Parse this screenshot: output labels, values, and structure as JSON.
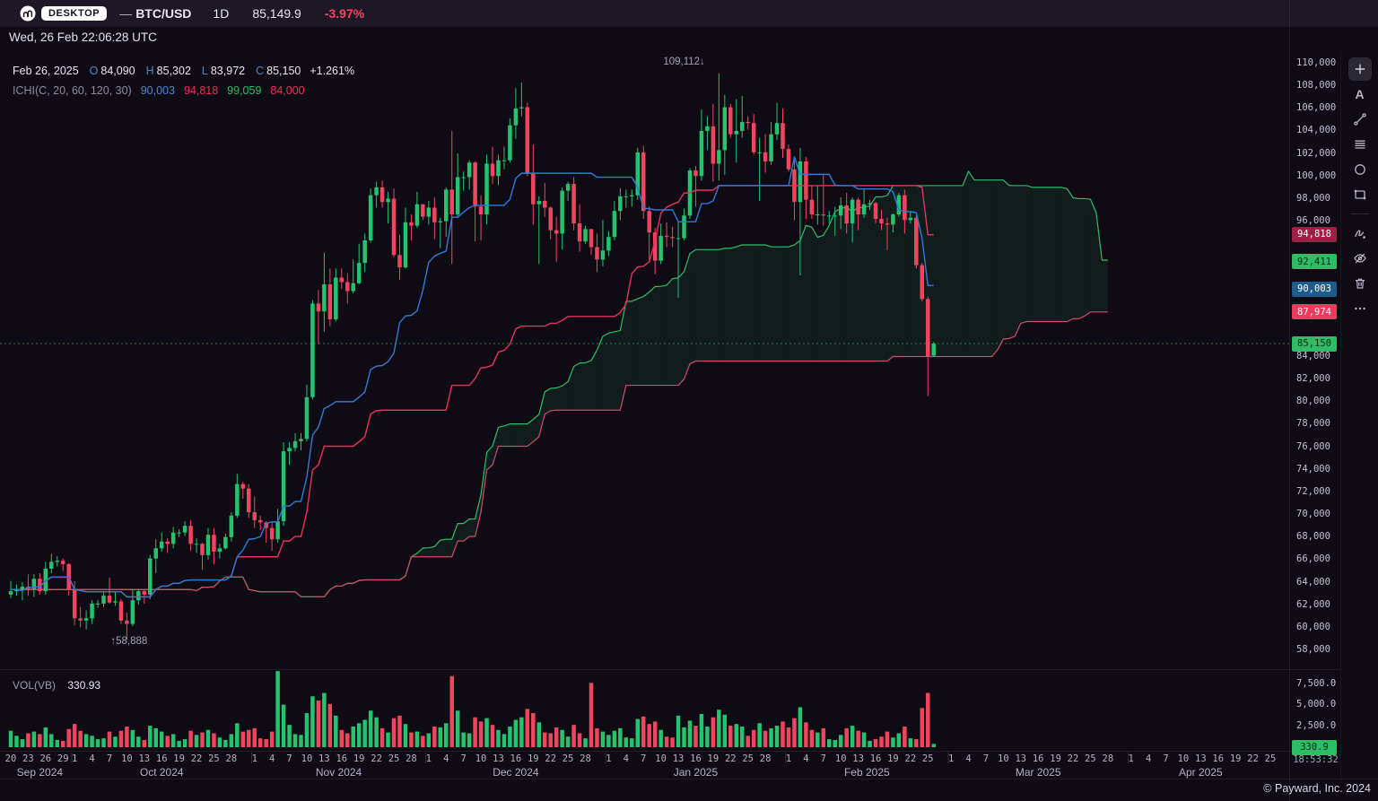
{
  "header": {
    "badge": "DESKTOP",
    "separator": "—",
    "pair": "BTC/USD",
    "timeframe": "1D",
    "price": "85,149.9",
    "change": "-3.97%",
    "datetime": "Wed, 26 Feb 22:06:28 UTC"
  },
  "legend": {
    "date": "Feb 26, 2025",
    "fields": [
      {
        "label": "O",
        "value": "84,090"
      },
      {
        "label": "H",
        "value": "85,302"
      },
      {
        "label": "L",
        "value": "83,972"
      },
      {
        "label": "C",
        "value": "85,150"
      }
    ],
    "change": "+1.261%",
    "indicator_label": "ICHI(C, 20, 60, 120, 30)",
    "indicator_values": [
      {
        "text": "90,003",
        "color": "#4a86d4"
      },
      {
        "text": "94,818",
        "color": "#e8315b"
      },
      {
        "text": "99,059",
        "color": "#2ebd64"
      },
      {
        "text": "84,000",
        "color": "#e8315b"
      }
    ]
  },
  "annotations": {
    "high": "109,112↓",
    "low": "↑58,888"
  },
  "volume_legend": {
    "label": "VOL(VB)",
    "value": "330.93"
  },
  "price_axis": {
    "visible_ticks": [
      "110,000",
      "108,000",
      "106,000",
      "104,000",
      "102,000",
      "100,000",
      "98,000",
      "96,000",
      "84,000",
      "82,000",
      "80,000",
      "78,000",
      "76,000",
      "74,000",
      "72,000",
      "70,000",
      "68,000",
      "66,000",
      "64,000",
      "62,000",
      "60,000",
      "58,000"
    ],
    "tags": [
      {
        "name": "kijun-price-tag",
        "text": "94,818",
        "price": 94818,
        "bg": "#9c2143",
        "fg": "#ffffff"
      },
      {
        "name": "senkou-a-price-tag",
        "text": "92,411",
        "price": 92411,
        "bg": "#2ebd64",
        "fg": "#0e2718"
      },
      {
        "name": "tenkan-price-tag",
        "text": "90,003",
        "price": 90003,
        "bg": "#1e5c8c",
        "fg": "#ffffff"
      },
      {
        "name": "senkou-b-price-tag",
        "text": "87,974",
        "price": 87974,
        "bg": "#ee3a5c",
        "fg": "#ffffff"
      },
      {
        "name": "last-price-tag",
        "text": "85,150",
        "price": 85150,
        "bg": "#2ebd64",
        "fg": "#0e2718"
      }
    ]
  },
  "volume_axis": {
    "ticks": [
      {
        "text": "7,500.0",
        "value": 7500
      },
      {
        "text": "5,000.0",
        "value": 5000
      },
      {
        "text": "2,500.0",
        "value": 2500
      }
    ],
    "tag": {
      "text": "330.9",
      "value": 331,
      "bg": "#2ebd64",
      "fg": "#0e2718"
    },
    "countdown": "18:53:32"
  },
  "time_axis": {
    "months": [
      {
        "label": "Sep 2024",
        "start_index": 0,
        "first_day": 20,
        "days": [
          20,
          23,
          26,
          29
        ]
      },
      {
        "label": "Oct 2024",
        "start_index": 11,
        "first_day": 1,
        "days": [
          1,
          4,
          7,
          10,
          13,
          16,
          19,
          22,
          25,
          28
        ]
      },
      {
        "label": "Nov 2024",
        "start_index": 42,
        "first_day": 1,
        "days": [
          1,
          4,
          7,
          10,
          13,
          16,
          19,
          22,
          25,
          28
        ]
      },
      {
        "label": "Dec 2024",
        "start_index": 72,
        "first_day": 1,
        "days": [
          1,
          4,
          7,
          10,
          13,
          16,
          19,
          22,
          25,
          28
        ]
      },
      {
        "label": "Jan 2025",
        "start_index": 103,
        "first_day": 1,
        "days": [
          1,
          4,
          7,
          10,
          13,
          16,
          19,
          22,
          25,
          28
        ]
      },
      {
        "label": "Feb 2025",
        "start_index": 134,
        "first_day": 1,
        "days": [
          1,
          4,
          7,
          10,
          13,
          16,
          19,
          22,
          25
        ]
      },
      {
        "label": "Mar 2025",
        "start_index": 162,
        "first_day": 1,
        "days": [
          1,
          4,
          7,
          10,
          13,
          16,
          19,
          22,
          25,
          28
        ]
      },
      {
        "label": "Apr 2025",
        "start_index": 193,
        "first_day": 1,
        "days": [
          1,
          4,
          7,
          10,
          13,
          16,
          19,
          22,
          25
        ]
      }
    ],
    "end_index": 217
  },
  "toolbar": {
    "items": [
      {
        "name": "add"
      },
      {
        "name": "text"
      },
      {
        "name": "trend-line"
      },
      {
        "name": "horizontal-lines"
      },
      {
        "name": "ellipse"
      },
      {
        "name": "rectangle"
      },
      {
        "divider": true
      },
      {
        "name": "freehand"
      },
      {
        "name": "hide-drawings"
      },
      {
        "name": "delete-drawings"
      },
      {
        "name": "more"
      }
    ]
  },
  "footer": {
    "copyright": "© Payward, Inc. 2024"
  },
  "chart_data": {
    "type": "candlestick",
    "title": "BTC/USD 1D candlesticks with ICHI(C, 20, 60, 120, 30) Ichimoku cloud and volume",
    "interval": "1D",
    "start_date": "2024-09-20",
    "last_candle_date": "2025-02-26",
    "price_unit": "USD, values in thousands",
    "ylim": [
      57000,
      111500
    ],
    "last_price": 85.15,
    "indicator": {
      "name": "ICHI",
      "source": "C",
      "params": [
        20,
        60,
        120,
        30
      ]
    },
    "colors": {
      "up": "#26c36f",
      "down": "#f1455f",
      "tenkan": "#2f7bd8",
      "kijun": "#e8315b",
      "senkou_a": "#2ebd68",
      "senkou_b": "#d14a6c",
      "cloud_up": "rgba(46,189,104,0.10)",
      "cloud_down": "rgba(233,62,96,0.09)",
      "price_line": "rgba(46,195,111,0.6)"
    },
    "annotations": [
      {
        "text": "109,112↓",
        "candle_index": 122,
        "type": "highest-high"
      },
      {
        "text": "↑58,888",
        "candle_index": 20,
        "type": "lowest-low"
      }
    ],
    "ohlc": [
      [
        62.9,
        64.1,
        62.6,
        63.2
      ],
      [
        63.2,
        63.8,
        62.8,
        63.3
      ],
      [
        63.3,
        64,
        62.4,
        63.6
      ],
      [
        63.6,
        64.7,
        62.8,
        63.4
      ],
      [
        63.4,
        64.7,
        62.7,
        64.3
      ],
      [
        64.3,
        64.8,
        62.9,
        63.2
      ],
      [
        63.2,
        65.8,
        62.9,
        65.2
      ],
      [
        65.2,
        66.5,
        64.8,
        65.8
      ],
      [
        65.8,
        66.3,
        65.4,
        65.9
      ],
      [
        65.9,
        66.1,
        65,
        65.6
      ],
      [
        65.6,
        65.7,
        62.8,
        63.3
      ],
      [
        63.3,
        64.1,
        60.2,
        60.8
      ],
      [
        60.8,
        61.8,
        60,
        60.6
      ],
      [
        60.6,
        61.5,
        59.8,
        60.8
      ],
      [
        60.8,
        62.4,
        60.3,
        62.1
      ],
      [
        62.1,
        62.4,
        61.7,
        62.1
      ],
      [
        62.1,
        63.2,
        61.8,
        62.8
      ],
      [
        62.8,
        64.4,
        62.1,
        62.2
      ],
      [
        62.2,
        63.2,
        61.9,
        62.3
      ],
      [
        62.3,
        62.5,
        60.3,
        60.6
      ],
      [
        60.6,
        61.3,
        58.9,
        60.3
      ],
      [
        60.3,
        63.4,
        60.1,
        62.4
      ],
      [
        62.4,
        63.4,
        62,
        63.2
      ],
      [
        63.2,
        63.3,
        62.1,
        62.9
      ],
      [
        62.9,
        66.4,
        62.5,
        66.1
      ],
      [
        66.1,
        67.8,
        64.8,
        67
      ],
      [
        67,
        68.4,
        66.7,
        67.6
      ],
      [
        67.6,
        67.9,
        66.6,
        67.4
      ],
      [
        67.4,
        68.9,
        67,
        68.4
      ],
      [
        68.4,
        68.7,
        68,
        68.4
      ],
      [
        68.4,
        69.4,
        68.1,
        69
      ],
      [
        69,
        69.5,
        66.8,
        67.4
      ],
      [
        67.4,
        67.9,
        66.6,
        67.4
      ],
      [
        67.4,
        67.5,
        65.1,
        66.4
      ],
      [
        66.4,
        68.8,
        66,
        68.2
      ],
      [
        68.2,
        68.8,
        65.6,
        66.7
      ],
      [
        66.7,
        67.4,
        66.1,
        67
      ],
      [
        67,
        68.3,
        66.9,
        68
      ],
      [
        68,
        70.2,
        67.6,
        69.9
      ],
      [
        69.9,
        73.6,
        69.7,
        72.7
      ],
      [
        72.7,
        72.9,
        71.4,
        72.3
      ],
      [
        72.3,
        72.7,
        69.7,
        70.2
      ],
      [
        70.2,
        71.6,
        68.8,
        69.5
      ],
      [
        69.5,
        69.9,
        68.6,
        69.3
      ],
      [
        69.3,
        69.4,
        67.5,
        68.8
      ],
      [
        68.8,
        69.4,
        66.8,
        67.8
      ],
      [
        67.8,
        70.5,
        67.5,
        69.4
      ],
      [
        69.4,
        76.4,
        69,
        75.6
      ],
      [
        75.6,
        76.4,
        74.4,
        75.9
      ],
      [
        75.9,
        77.2,
        75.6,
        76.5
      ],
      [
        76.5,
        77.2,
        75.7,
        76.7
      ],
      [
        76.7,
        81.5,
        76.5,
        80.4
      ],
      [
        80.4,
        89,
        80.2,
        88.7
      ],
      [
        88.7,
        89.9,
        85.1,
        88
      ],
      [
        88,
        93.2,
        86.2,
        90.4
      ],
      [
        90.4,
        91.8,
        86.7,
        87.3
      ],
      [
        87.3,
        91.8,
        87.1,
        91
      ],
      [
        91,
        91.8,
        90,
        90.6
      ],
      [
        90.6,
        91.4,
        88.7,
        89.8
      ],
      [
        89.8,
        92.6,
        89.6,
        90.5
      ],
      [
        90.5,
        94,
        90.4,
        92.3
      ],
      [
        92.3,
        94.9,
        91.5,
        94.3
      ],
      [
        94.3,
        98.9,
        94.1,
        98.3
      ],
      [
        98.3,
        99.5,
        97.2,
        99
      ],
      [
        99,
        99.6,
        97.2,
        97.7
      ],
      [
        97.7,
        98.6,
        95.8,
        98
      ],
      [
        98,
        98.9,
        92.8,
        93
      ],
      [
        93,
        94.8,
        90.8,
        91.9
      ],
      [
        91.9,
        97.2,
        91.8,
        95.9
      ],
      [
        95.9,
        96.6,
        94.3,
        95.6
      ],
      [
        95.6,
        98.6,
        95.4,
        97.5
      ],
      [
        97.5,
        97.5,
        96.1,
        96.4
      ],
      [
        96.4,
        97.8,
        95.7,
        97.2
      ],
      [
        97.2,
        98.1,
        94.4,
        95.9
      ],
      [
        95.9,
        96.3,
        93.6,
        96
      ],
      [
        96,
        99,
        94.6,
        98.8
      ],
      [
        98.8,
        104,
        92.2,
        96.6
      ],
      [
        96.6,
        102,
        96.4,
        99.9
      ],
      [
        99.9,
        100.4,
        98.7,
        99.9
      ],
      [
        99.9,
        101.4,
        98.8,
        101.2
      ],
      [
        101.2,
        101.3,
        94.2,
        97.3
      ],
      [
        97.3,
        98.3,
        94.3,
        96.6
      ],
      [
        96.6,
        101.9,
        95.7,
        101.1
      ],
      [
        101.1,
        102.6,
        99.3,
        100
      ],
      [
        100,
        101.9,
        99.2,
        101.4
      ],
      [
        101.4,
        102.6,
        100.6,
        101.4
      ],
      [
        101.4,
        105.1,
        101.2,
        104.5
      ],
      [
        104.5,
        107.8,
        103.3,
        106
      ],
      [
        106,
        108.3,
        105.3,
        106.1
      ],
      [
        106.1,
        106.5,
        100,
        100.2
      ],
      [
        100.2,
        102.8,
        95.7,
        97.5
      ],
      [
        97.5,
        98.2,
        92.2,
        97.8
      ],
      [
        97.8,
        99.4,
        96.4,
        97.2
      ],
      [
        97.2,
        97.3,
        94.4,
        95.2
      ],
      [
        95.2,
        96.4,
        92.4,
        94.9
      ],
      [
        94.9,
        99,
        93.5,
        98.7
      ],
      [
        98.7,
        99.5,
        97.8,
        99.3
      ],
      [
        99.3,
        99.9,
        95.2,
        95.8
      ],
      [
        95.8,
        97.5,
        93.3,
        94.2
      ],
      [
        94.2,
        95.6,
        94,
        95.3
      ],
      [
        95.3,
        95.3,
        93,
        93.7
      ],
      [
        93.7,
        94.9,
        91.5,
        92.6
      ],
      [
        92.6,
        96.1,
        92,
        93.4
      ],
      [
        93.4,
        95.1,
        92.9,
        94.6
      ],
      [
        94.6,
        97.8,
        94.3,
        96.9
      ],
      [
        96.9,
        98.9,
        96.1,
        98.2
      ],
      [
        98.2,
        98.8,
        97.2,
        98.2
      ],
      [
        98.2,
        98.8,
        97.3,
        98.3
      ],
      [
        98.3,
        102.5,
        97.9,
        102.1
      ],
      [
        102.1,
        102.7,
        96.2,
        96.9
      ],
      [
        96.9,
        97.3,
        92.5,
        95
      ],
      [
        95,
        95.4,
        91.3,
        92.5
      ],
      [
        92.5,
        95.8,
        92.2,
        94.7
      ],
      [
        94.7,
        95.9,
        93.7,
        94.6
      ],
      [
        94.6,
        95.5,
        93.7,
        94.5
      ],
      [
        94.5,
        95.9,
        89.2,
        94.5
      ],
      [
        94.5,
        97.1,
        94.3,
        96.5
      ],
      [
        96.5,
        100.7,
        96.2,
        100.5
      ],
      [
        100.5,
        100.9,
        97.3,
        100
      ],
      [
        100,
        105.9,
        99.6,
        104
      ],
      [
        104,
        105.3,
        102.3,
        104.4
      ],
      [
        104.4,
        106.4,
        99.5,
        101.1
      ],
      [
        101.1,
        109.1,
        99.6,
        102.3
      ],
      [
        102.3,
        107.2,
        100.1,
        106.1
      ],
      [
        106.1,
        106.4,
        103.4,
        103.7
      ],
      [
        103.7,
        106.8,
        101.2,
        104
      ],
      [
        104,
        107.1,
        103.4,
        104.8
      ],
      [
        104.8,
        105.3,
        104.1,
        104.7
      ],
      [
        104.7,
        105.5,
        101.9,
        102.1
      ],
      [
        102.1,
        103.4,
        97.8,
        102.1
      ],
      [
        102.1,
        103.7,
        100.3,
        101.3
      ],
      [
        101.3,
        104.8,
        101,
        103.7
      ],
      [
        103.7,
        106.5,
        103.2,
        104.7
      ],
      [
        104.7,
        106,
        101.6,
        102.4
      ],
      [
        102.4,
        102.8,
        100.4,
        100.6
      ],
      [
        100.6,
        101.4,
        96.1,
        97.7
      ],
      [
        97.7,
        102.5,
        91.2,
        101.3
      ],
      [
        101.3,
        101.7,
        96.2,
        97.9
      ],
      [
        97.9,
        99.2,
        96.2,
        96.6
      ],
      [
        96.6,
        99.1,
        95.7,
        96.6
      ],
      [
        96.6,
        100.1,
        95.6,
        96.5
      ],
      [
        96.5,
        96.9,
        95.8,
        96.5
      ],
      [
        96.5,
        97.3,
        94.7,
        96.5
      ],
      [
        96.5,
        98.1,
        95.3,
        97.4
      ],
      [
        97.4,
        98.5,
        94.9,
        95.8
      ],
      [
        95.8,
        98.1,
        94.1,
        97.9
      ],
      [
        97.9,
        98.1,
        95.2,
        96.6
      ],
      [
        96.6,
        98.8,
        96.3,
        97.5
      ],
      [
        97.5,
        97.9,
        97,
        97.6
      ],
      [
        97.6,
        97.7,
        95.8,
        96.2
      ],
      [
        96.2,
        97,
        95.2,
        95.8
      ],
      [
        95.8,
        96.3,
        93.4,
        95.7
      ],
      [
        95.7,
        96.7,
        95,
        96.6
      ],
      [
        96.6,
        98.5,
        96.4,
        98.3
      ],
      [
        98.3,
        98.8,
        94.9,
        96.1
      ],
      [
        96.1,
        96.9,
        95.8,
        96.3
      ],
      [
        96.3,
        96.5,
        91.8,
        92.1
      ],
      [
        92.1,
        92.3,
        88.9,
        89.1
      ],
      [
        89.1,
        89.3,
        80.5,
        84
      ],
      [
        84.09,
        85.3,
        83.97,
        85.15
      ]
    ],
    "volumes": [
      1900,
      1300,
      900,
      1600,
      1800,
      1500,
      2300,
      1500,
      800,
      700,
      2100,
      2700,
      1900,
      1500,
      1300,
      900,
      1000,
      1800,
      1200,
      1900,
      2400,
      2000,
      1200,
      800,
      2500,
      2200,
      1800,
      1300,
      1500,
      700,
      900,
      1900,
      1400,
      1700,
      2000,
      1600,
      1100,
      800,
      1500,
      2800,
      1800,
      2000,
      2200,
      1000,
      900,
      1800,
      9000,
      5000,
      2600,
      1500,
      1400,
      4000,
      6000,
      5500,
      6400,
      5100,
      3700,
      2000,
      1600,
      2400,
      2800,
      3200,
      4300,
      3500,
      2200,
      1700,
      3400,
      3700,
      2700,
      1700,
      1800,
      1300,
      1600,
      2400,
      2300,
      2800,
      8400,
      4300,
      1700,
      1600,
      3500,
      3000,
      3400,
      2600,
      2000,
      1500,
      2400,
      3200,
      3500,
      4500,
      4000,
      2900,
      1700,
      1600,
      2300,
      2000,
      1200,
      2600,
      1600,
      1000,
      7600,
      2200,
      1800,
      1400,
      1900,
      2200,
      1100,
      1000,
      3300,
      3600,
      2700,
      3000,
      2000,
      1200,
      1100,
      3700,
      2300,
      3100,
      2500,
      3900,
      2400,
      3500,
      4400,
      3800,
      2500,
      2700,
      2400,
      1300,
      2000,
      2800,
      1900,
      2200,
      2500,
      3000,
      2300,
      3400,
      4700,
      2900,
      2000,
      1700,
      2200,
      900,
      800,
      1400,
      2200,
      2500,
      1900,
      1700,
      700,
      900,
      1200,
      1800,
      1100,
      1600,
      2400,
      1000,
      900,
      4600,
      6400,
      331
    ]
  }
}
